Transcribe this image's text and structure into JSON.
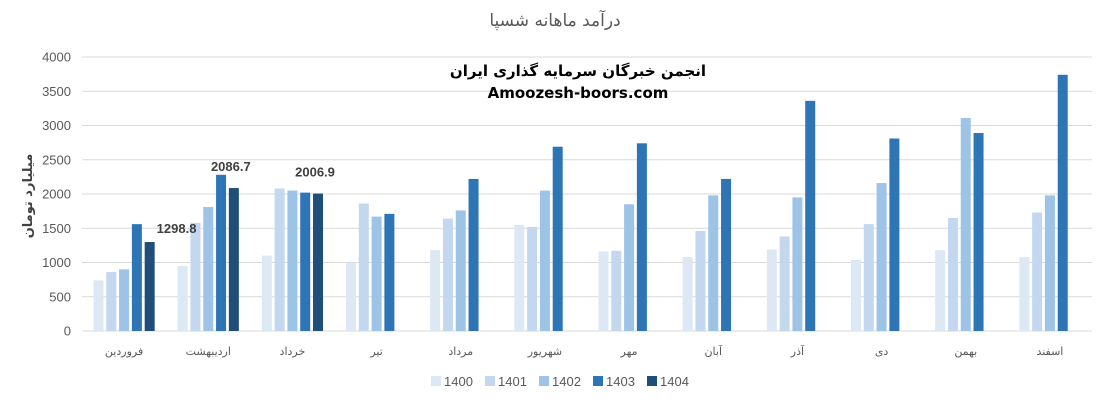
{
  "chart_data": {
    "type": "bar",
    "title": "درآمد ماهانه شسپا",
    "ylabel": "میلیارد تومان",
    "xlabel": "",
    "ylim": [
      0,
      4000
    ],
    "yticks": [
      0,
      500,
      1000,
      1500,
      2000,
      2500,
      3000,
      3500,
      4000
    ],
    "grid": true,
    "legend_position": "bottom",
    "categories": [
      "فروردین",
      "اردیبهشت",
      "خرداد",
      "تیر",
      "مرداد",
      "شهریور",
      "مهر",
      "آبان",
      "آذر",
      "دی",
      "بهمن",
      "اسفند"
    ],
    "series": [
      {
        "name": "1400",
        "color": "#dde8f5",
        "values": [
          740,
          950,
          1100,
          1000,
          1180,
          1550,
          1160,
          1080,
          1190,
          1040,
          1180,
          1080
        ]
      },
      {
        "name": "1401",
        "color": "#c3d7ee",
        "values": [
          860,
          1580,
          2080,
          1860,
          1640,
          1520,
          1170,
          1460,
          1380,
          1560,
          1650,
          1730
        ]
      },
      {
        "name": "1402",
        "color": "#9dc3e6",
        "values": [
          900,
          1810,
          2050,
          1670,
          1760,
          2050,
          1850,
          1980,
          1950,
          2160,
          3110,
          1980
        ]
      },
      {
        "name": "1403",
        "color": "#2e75b6",
        "values": [
          1560,
          2280,
          2020,
          1710,
          2220,
          2690,
          2740,
          2220,
          3360,
          2810,
          2890,
          3740
        ]
      },
      {
        "name": "1404",
        "color": "#1f4e79",
        "values": [
          1298.8,
          2086.7,
          2006.9,
          null,
          null,
          null,
          null,
          null,
          null,
          null,
          null,
          null
        ]
      }
    ],
    "data_labels": [
      {
        "category_index": 0,
        "series_index": 4,
        "text": "1298.8"
      },
      {
        "category_index": 1,
        "series_index": 4,
        "text": "2086.7"
      },
      {
        "category_index": 2,
        "series_index": 4,
        "text": "2006.9"
      }
    ]
  },
  "watermark": {
    "line1": "انجمن خبرگان سرمایه گذاری ایران",
    "line2": "Amoozesh-boors.com"
  }
}
